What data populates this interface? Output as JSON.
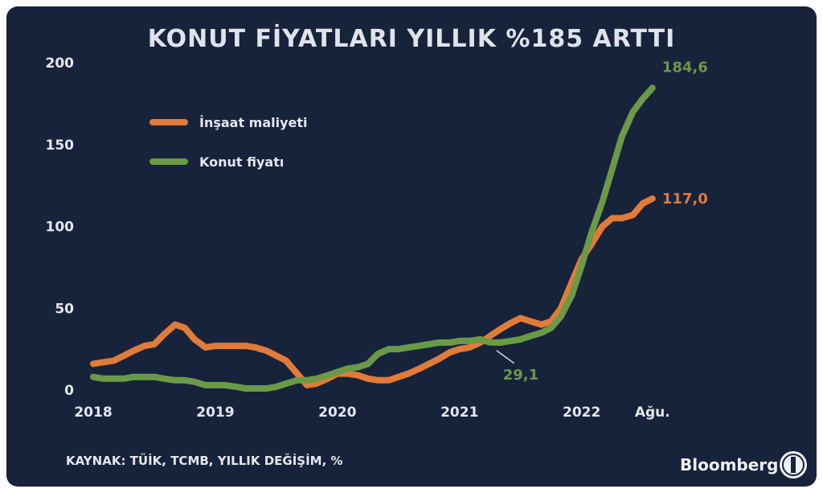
{
  "chart_data": {
    "type": "line",
    "title": "KONUT FİYATLARI YILLIK %185 ARTTI",
    "ylim": [
      0,
      200
    ],
    "yticks": [
      0,
      50,
      100,
      150,
      200
    ],
    "xlim": [
      2018,
      2023.2
    ],
    "xticks": [
      {
        "value": 2018,
        "label": "2018"
      },
      {
        "value": 2019,
        "label": "2019"
      },
      {
        "value": 2020,
        "label": "2020"
      },
      {
        "value": 2021,
        "label": "2021"
      },
      {
        "value": 2022,
        "label": "2022"
      },
      {
        "value": 2022.58,
        "label": "Ağu."
      }
    ],
    "legend_position": "top-left",
    "series": [
      {
        "name": "İnşaat maliyeti",
        "color": "#e07b39",
        "points": [
          [
            2018.0,
            16
          ],
          [
            2018.08,
            17
          ],
          [
            2018.17,
            18
          ],
          [
            2018.25,
            21
          ],
          [
            2018.33,
            24
          ],
          [
            2018.42,
            27
          ],
          [
            2018.5,
            28
          ],
          [
            2018.58,
            34
          ],
          [
            2018.67,
            40
          ],
          [
            2018.75,
            38
          ],
          [
            2018.83,
            31
          ],
          [
            2018.92,
            26
          ],
          [
            2019.0,
            27
          ],
          [
            2019.08,
            27
          ],
          [
            2019.17,
            27
          ],
          [
            2019.25,
            27
          ],
          [
            2019.33,
            26
          ],
          [
            2019.42,
            24
          ],
          [
            2019.5,
            21
          ],
          [
            2019.58,
            18
          ],
          [
            2019.67,
            10
          ],
          [
            2019.75,
            3
          ],
          [
            2019.83,
            4
          ],
          [
            2019.92,
            7
          ],
          [
            2020.0,
            10
          ],
          [
            2020.08,
            10
          ],
          [
            2020.17,
            9
          ],
          [
            2020.25,
            7
          ],
          [
            2020.33,
            6
          ],
          [
            2020.42,
            6
          ],
          [
            2020.5,
            8
          ],
          [
            2020.58,
            10
          ],
          [
            2020.67,
            13
          ],
          [
            2020.75,
            16
          ],
          [
            2020.83,
            19
          ],
          [
            2020.92,
            23
          ],
          [
            2021.0,
            25
          ],
          [
            2021.08,
            26
          ],
          [
            2021.17,
            29
          ],
          [
            2021.25,
            33
          ],
          [
            2021.33,
            37
          ],
          [
            2021.42,
            41
          ],
          [
            2021.5,
            44
          ],
          [
            2021.58,
            42
          ],
          [
            2021.67,
            40
          ],
          [
            2021.75,
            42
          ],
          [
            2021.83,
            50
          ],
          [
            2021.92,
            66
          ],
          [
            2022.0,
            80
          ],
          [
            2022.08,
            89
          ],
          [
            2022.17,
            100
          ],
          [
            2022.25,
            105
          ],
          [
            2022.33,
            105
          ],
          [
            2022.42,
            107
          ],
          [
            2022.5,
            114
          ],
          [
            2022.58,
            117
          ]
        ],
        "end_label": "117,0"
      },
      {
        "name": "Konut fiyatı",
        "color": "#6b9a46",
        "points": [
          [
            2018.0,
            8
          ],
          [
            2018.08,
            7
          ],
          [
            2018.17,
            7
          ],
          [
            2018.25,
            7
          ],
          [
            2018.33,
            8
          ],
          [
            2018.42,
            8
          ],
          [
            2018.5,
            8
          ],
          [
            2018.58,
            7
          ],
          [
            2018.67,
            6
          ],
          [
            2018.75,
            6
          ],
          [
            2018.83,
            5
          ],
          [
            2018.92,
            3
          ],
          [
            2019.0,
            3
          ],
          [
            2019.08,
            3
          ],
          [
            2019.17,
            2
          ],
          [
            2019.25,
            1
          ],
          [
            2019.33,
            1
          ],
          [
            2019.42,
            1
          ],
          [
            2019.5,
            2
          ],
          [
            2019.58,
            4
          ],
          [
            2019.67,
            6
          ],
          [
            2019.75,
            6
          ],
          [
            2019.83,
            7
          ],
          [
            2019.92,
            9
          ],
          [
            2020.0,
            11
          ],
          [
            2020.08,
            13
          ],
          [
            2020.17,
            14
          ],
          [
            2020.25,
            16
          ],
          [
            2020.33,
            22
          ],
          [
            2020.42,
            25
          ],
          [
            2020.5,
            25
          ],
          [
            2020.58,
            26
          ],
          [
            2020.67,
            27
          ],
          [
            2020.75,
            28
          ],
          [
            2020.83,
            29
          ],
          [
            2020.92,
            29
          ],
          [
            2021.0,
            30
          ],
          [
            2021.08,
            30
          ],
          [
            2021.17,
            31
          ],
          [
            2021.25,
            29.1
          ],
          [
            2021.33,
            29
          ],
          [
            2021.42,
            30
          ],
          [
            2021.5,
            31
          ],
          [
            2021.58,
            33
          ],
          [
            2021.67,
            35
          ],
          [
            2021.75,
            38
          ],
          [
            2021.83,
            45
          ],
          [
            2021.92,
            58
          ],
          [
            2022.0,
            76
          ],
          [
            2022.08,
            96
          ],
          [
            2022.17,
            115
          ],
          [
            2022.25,
            135
          ],
          [
            2022.33,
            155
          ],
          [
            2022.42,
            170
          ],
          [
            2022.5,
            178
          ],
          [
            2022.58,
            184.6
          ]
        ],
        "end_label": "184,6"
      }
    ],
    "annotations": [
      {
        "text": "29,1",
        "x": 2021.25,
        "y": 29.1,
        "series": 1
      }
    ],
    "source": "KAYNAK: TÜİK, TCMB, YILLIK DEĞİŞİM, %",
    "brand": "Bloomberg",
    "background_color": "#17223b"
  }
}
